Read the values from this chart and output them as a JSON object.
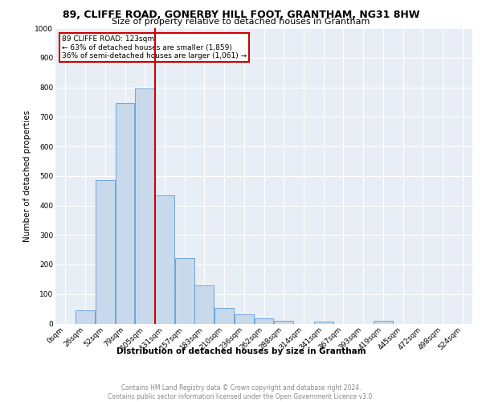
{
  "title1": "89, CLIFFE ROAD, GONERBY HILL FOOT, GRANTHAM, NG31 8HW",
  "title2": "Size of property relative to detached houses in Grantham",
  "xlabel": "Distribution of detached houses by size in Grantham",
  "ylabel": "Number of detached properties",
  "footnote": "Contains HM Land Registry data © Crown copyright and database right 2024.\nContains public sector information licensed under the Open Government Licence v3.0.",
  "bar_labels": [
    "0sqm",
    "26sqm",
    "52sqm",
    "79sqm",
    "105sqm",
    "131sqm",
    "157sqm",
    "183sqm",
    "210sqm",
    "236sqm",
    "262sqm",
    "288sqm",
    "314sqm",
    "341sqm",
    "367sqm",
    "393sqm",
    "419sqm",
    "445sqm",
    "472sqm",
    "498sqm",
    "524sqm"
  ],
  "bar_values": [
    0,
    45,
    485,
    748,
    795,
    433,
    222,
    128,
    52,
    30,
    18,
    10,
    0,
    8,
    0,
    0,
    10,
    0,
    0,
    0,
    0
  ],
  "bar_color": "#c9d9ec",
  "bar_edge_color": "#5b9bd5",
  "annotation_title": "89 CLIFFE ROAD: 123sqm",
  "annotation_line1": "← 63% of detached houses are smaller (1,859)",
  "annotation_line2": "36% of semi-detached houses are larger (1,061) →",
  "vline_color": "#cc0000",
  "vline_x_index": 5,
  "ylim": [
    0,
    1000
  ],
  "yticks": [
    0,
    100,
    200,
    300,
    400,
    500,
    600,
    700,
    800,
    900,
    1000
  ],
  "bg_color": "#e8eef5",
  "grid_color": "#ffffff",
  "title1_fontsize": 9,
  "title2_fontsize": 8,
  "ylabel_fontsize": 7.5,
  "xlabel_fontsize": 7.5,
  "tick_fontsize": 6.5,
  "footnote_fontsize": 5.5
}
